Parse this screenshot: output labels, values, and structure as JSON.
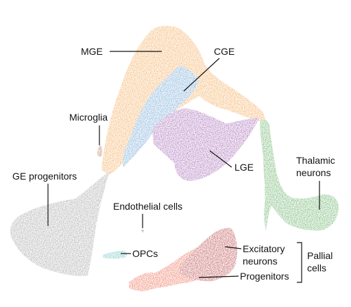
{
  "labels": {
    "mge": "MGE",
    "cge": "CGE",
    "microglia": "Microglia",
    "ge_progenitors": "GE progenitors",
    "lge": "LGE",
    "thalamic_1": "Thalamic",
    "thalamic_2": "neurons",
    "endothelial": "Endothelial cells",
    "opcs": "OPCs",
    "excitatory_1": "Excitatory",
    "excitatory_2": "neurons",
    "progenitors": "Progenitors",
    "pallial_1": "Pallial",
    "pallial_2": "cells"
  },
  "colors": {
    "mge": "#F0932B",
    "cge": "#4A8EC9",
    "lge": "#8B3FA0",
    "ge_progenitors": "#8C8C8C",
    "microglia": "#A0522D",
    "thalamic": "#3C9A3C",
    "endothelial": "#555555",
    "opcs": "#46B3B0",
    "excitatory": "#A8191C",
    "progenitors": "#E8472A"
  }
}
